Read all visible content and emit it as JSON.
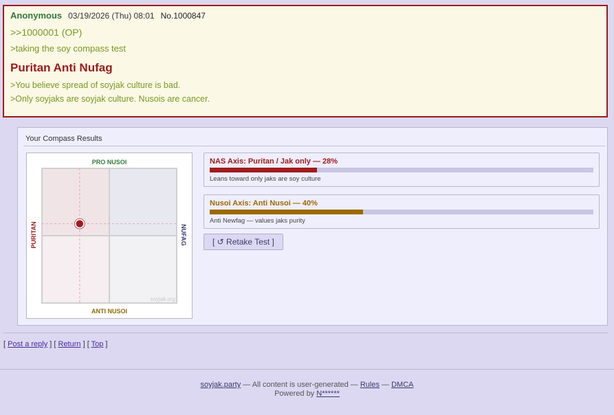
{
  "post": {
    "name": "Anonymous",
    "date": "03/19/2026 (Thu) 08:01",
    "number": "No.1000847",
    "reply_link": ">>1000001 (OP)",
    "greentext_1": ">taking the soy compass test",
    "result_title": "Puritan Anti Nufag",
    "greentext_2": ">You believe spread of soyjak culture is bad.",
    "greentext_3": ">Only soyjaks are soyjak culture. Nusois are cancer."
  },
  "results": {
    "title": "Your Compass Results",
    "compass": {
      "top_label": "PRO NUSOI",
      "bottom_label": "ANTI NUSOI",
      "left_label": "PURITAN",
      "right_label": "NUFAG",
      "watermark": "soyjak.org",
      "point": {
        "nas": 28,
        "nusoi": 40
      }
    },
    "axes": [
      {
        "title": "NAS Axis: Puritan / Jak only — 28%",
        "percent": 28,
        "color": "#a01c1c",
        "description": "Leans toward only jaks are soy culture"
      },
      {
        "title": "Nusoi Axis: Anti Nusoi — 40%",
        "percent": 40,
        "color": "#9a6a00",
        "description": "Anti Newfag — values jaks purity"
      }
    ],
    "retake_label": "[ ↺ Retake Test ]"
  },
  "nav": {
    "post_reply": "Post a reply",
    "return": "Return",
    "top": "Top"
  },
  "footer": {
    "site": "soyjak.party",
    "text": " — All content is user-generated — ",
    "rules": "Rules",
    "sep": " — ",
    "dmca": "DMCA",
    "powered_by": "Powered by ",
    "powered_link": "N******"
  }
}
